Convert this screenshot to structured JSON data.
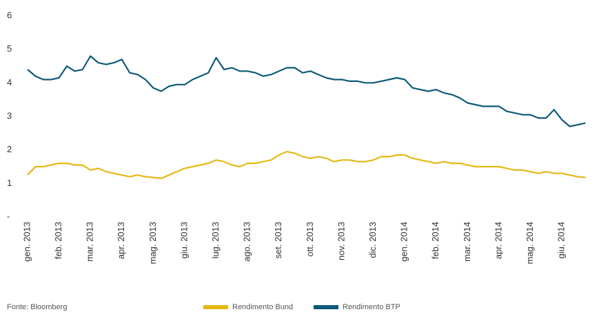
{
  "chart_data": {
    "type": "line",
    "source": "Fonte: Bloomberg",
    "categories": [
      "gen. 2013",
      null,
      null,
      null,
      "feb. 2013",
      null,
      null,
      null,
      "mar. 2013",
      null,
      null,
      null,
      "apr. 2013",
      null,
      null,
      null,
      "mag. 2013",
      null,
      null,
      null,
      "giu. 2013",
      null,
      null,
      null,
      "lug. 2013",
      null,
      null,
      null,
      "ago. 2013",
      null,
      null,
      null,
      "set. 2013",
      null,
      null,
      null,
      "ott. 2013",
      null,
      null,
      null,
      "nov. 2013",
      null,
      null,
      null,
      "dic. 2013",
      null,
      null,
      null,
      "gen. 2014",
      null,
      null,
      null,
      "feb. 2014",
      null,
      null,
      null,
      "mar. 2014",
      null,
      null,
      null,
      "apr. 2014",
      null,
      null,
      null,
      "mag. 2014",
      null,
      null,
      null,
      "giu. 2014",
      null,
      null,
      null
    ],
    "series": [
      {
        "name": "Rendimento Bund",
        "color": "#e5b814",
        "values": [
          1.25,
          1.5,
          1.5,
          1.55,
          1.6,
          1.6,
          1.55,
          1.55,
          1.4,
          1.45,
          1.35,
          1.3,
          1.25,
          1.2,
          1.25,
          1.2,
          1.18,
          1.15,
          1.25,
          1.35,
          1.45,
          1.5,
          1.55,
          1.6,
          1.7,
          1.65,
          1.55,
          1.5,
          1.6,
          1.6,
          1.65,
          1.7,
          1.85,
          1.95,
          1.9,
          1.8,
          1.75,
          1.8,
          1.75,
          1.65,
          1.7,
          1.7,
          1.65,
          1.65,
          1.7,
          1.8,
          1.8,
          1.85,
          1.85,
          1.75,
          1.7,
          1.65,
          1.6,
          1.65,
          1.6,
          1.6,
          1.55,
          1.5,
          1.5,
          1.5,
          1.5,
          1.45,
          1.4,
          1.4,
          1.35,
          1.3,
          1.35,
          1.3,
          1.3,
          1.25,
          1.2,
          1.18
        ]
      },
      {
        "name": "Rendimento BTP",
        "color": "#0d5a78",
        "values": [
          4.4,
          4.2,
          4.1,
          4.1,
          4.15,
          4.5,
          4.35,
          4.4,
          4.8,
          4.6,
          4.55,
          4.6,
          4.7,
          4.3,
          4.25,
          4.1,
          3.85,
          3.75,
          3.9,
          3.95,
          3.95,
          4.1,
          4.2,
          4.3,
          4.75,
          4.4,
          4.45,
          4.35,
          4.35,
          4.3,
          4.2,
          4.25,
          4.35,
          4.45,
          4.45,
          4.3,
          4.35,
          4.25,
          4.15,
          4.1,
          4.1,
          4.05,
          4.05,
          4.0,
          4.0,
          4.05,
          4.1,
          4.15,
          4.1,
          3.85,
          3.8,
          3.75,
          3.8,
          3.7,
          3.65,
          3.55,
          3.4,
          3.35,
          3.3,
          3.3,
          3.3,
          3.15,
          3.1,
          3.05,
          3.05,
          2.95,
          2.95,
          3.2,
          2.9,
          2.7,
          2.75,
          2.8
        ]
      }
    ],
    "ylim": [
      0,
      6
    ],
    "yticks": [
      {
        "value": 0,
        "label": "-"
      },
      1,
      2,
      3,
      4,
      5,
      6
    ],
    "grid": false,
    "legend": "bottom"
  }
}
